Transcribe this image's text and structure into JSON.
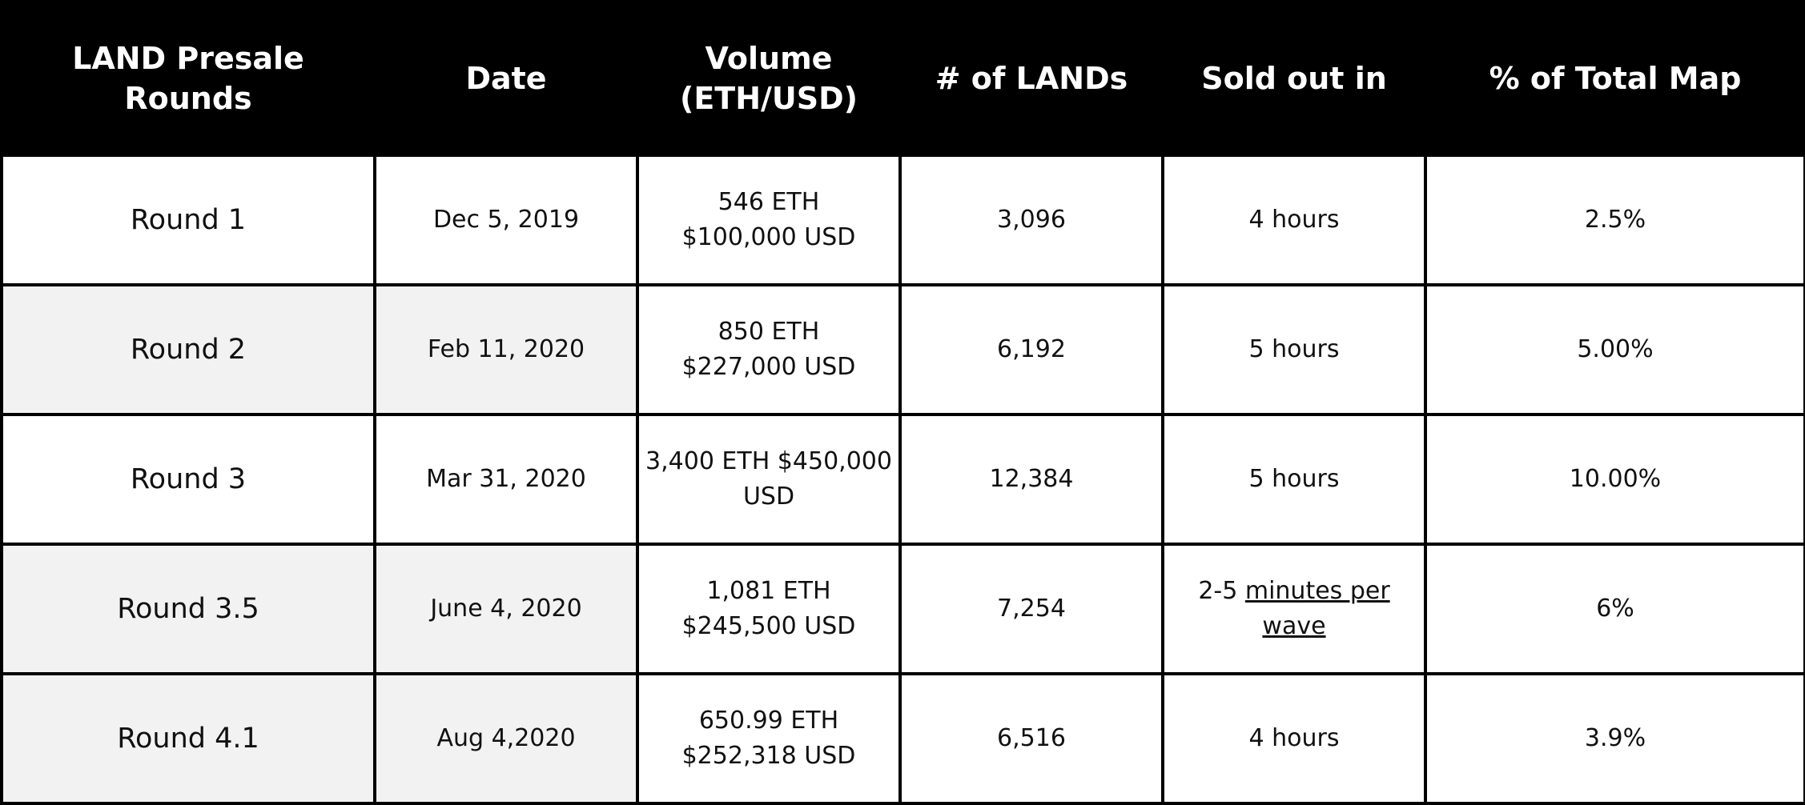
{
  "table": {
    "headers": [
      {
        "lines": [
          "LAND Presale Rounds"
        ]
      },
      {
        "lines": [
          "Date"
        ]
      },
      {
        "lines": [
          "Volume",
          "(ETH/USD)"
        ]
      },
      {
        "lines": [
          "# of LANDs"
        ]
      },
      {
        "lines": [
          "Sold out in"
        ]
      },
      {
        "lines": [
          "% of Total Map"
        ]
      }
    ],
    "rows": [
      {
        "round": "Round 1",
        "date": "Dec 5, 2019",
        "volume_eth": "546 ETH",
        "volume_usd": "$100,000 USD",
        "lands": "3,096",
        "sold_out": "4 hours",
        "sold_out_link": "",
        "percent": "2.5%"
      },
      {
        "round": "Round 2",
        "date": "Feb 11, 2020",
        "volume_eth": "850 ETH",
        "volume_usd": "$227,000 USD",
        "lands": "6,192",
        "sold_out": "5 hours",
        "sold_out_link": "",
        "percent": "5.00%"
      },
      {
        "round": "Round 3",
        "date": "Mar 31, 2020",
        "volume_eth": "3,400 ETH $450,000",
        "volume_usd": "USD",
        "lands": "12,384",
        "sold_out": "5 hours",
        "sold_out_link": "",
        "percent": "10.00%"
      },
      {
        "round": "Round 3.5",
        "date": "June 4, 2020",
        "volume_eth": "1,081 ETH",
        "volume_usd": "$245,500 USD",
        "lands": "7,254",
        "sold_out": "2-5 ",
        "sold_out_link": "minutes per wave",
        "percent": "6%"
      },
      {
        "round": "Round 4.1",
        "date": "Aug 4,2020",
        "volume_eth": "650.99 ETH",
        "volume_usd": "$252,318 USD",
        "lands": "6,516",
        "sold_out": "4 hours",
        "sold_out_link": "",
        "percent": "3.9%"
      }
    ]
  },
  "colors": {
    "header_bg": "#000000",
    "header_text": "#ffffff",
    "shaded_cell_bg": "#f2f2f2",
    "border": "#000000"
  }
}
